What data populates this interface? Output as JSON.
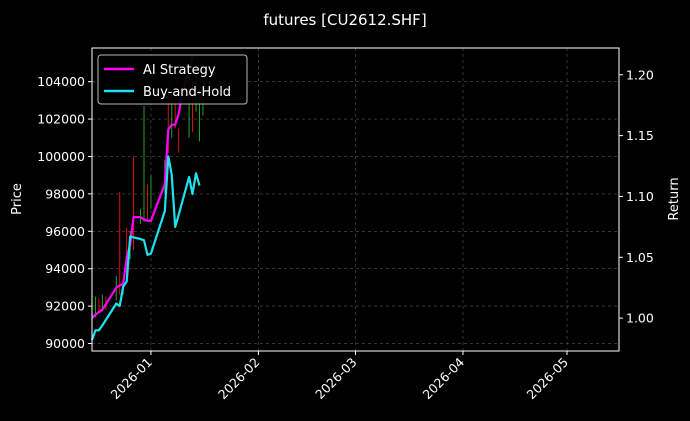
{
  "chart_data": {
    "type": "line",
    "title": "futures [CU2612.SHF]",
    "ylabel": "Price",
    "y2label": "Return",
    "ylim": [
      89600,
      105800
    ],
    "y2lim": [
      0.973,
      1.222
    ],
    "y_ticks": [
      "90000",
      "92000",
      "94000",
      "96000",
      "98000",
      "100000",
      "102000",
      "104000"
    ],
    "y2_ticks": [
      "1.00",
      "1.05",
      "1.10",
      "1.15",
      "1.20"
    ],
    "x_ticks": [
      "2026-01",
      "2026-02",
      "2026-03",
      "2026-04",
      "2026-05"
    ],
    "xlim": [
      "2025-12-15",
      "2026-05-16"
    ],
    "grid": true,
    "legend_position": "top-left",
    "colors": {
      "background": "#000000",
      "axis": "#ffffff",
      "grid": "#555555",
      "candle_up": "#1fa51f",
      "candle_down": "#e01010"
    },
    "candles": [
      {
        "x": "2025-12-15",
        "low": 91000,
        "high": 92100,
        "up": false
      },
      {
        "x": "2025-12-16",
        "low": 91400,
        "high": 92500,
        "up": true
      },
      {
        "x": "2025-12-17",
        "low": 91600,
        "high": 92400,
        "up": false
      },
      {
        "x": "2025-12-18",
        "low": 91700,
        "high": 92600,
        "up": true
      },
      {
        "x": "2025-12-19",
        "low": 91800,
        "high": 92500,
        "up": false
      },
      {
        "x": "2025-12-22",
        "low": 92300,
        "high": 93600,
        "up": true
      },
      {
        "x": "2025-12-23",
        "low": 92600,
        "high": 98100,
        "up": false
      },
      {
        "x": "2025-12-24",
        "low": 92600,
        "high": 93500,
        "up": true
      },
      {
        "x": "2025-12-25",
        "low": 93500,
        "high": 96200,
        "up": false
      },
      {
        "x": "2025-12-26",
        "low": 94500,
        "high": 96000,
        "up": true
      },
      {
        "x": "2025-12-27",
        "low": 95000,
        "high": 100000,
        "up": false
      },
      {
        "x": "2025-12-29",
        "low": 96400,
        "high": 97200,
        "up": true
      },
      {
        "x": "2025-12-30",
        "low": 96500,
        "high": 102700,
        "up": true
      },
      {
        "x": "2025-12-31",
        "low": 96600,
        "high": 98500,
        "up": false
      },
      {
        "x": "2026-01-01",
        "low": 97200,
        "high": 99000,
        "up": true
      },
      {
        "x": "2026-01-05",
        "low": 98000,
        "high": 99800,
        "up": true
      },
      {
        "x": "2026-01-06",
        "low": 100200,
        "high": 104000,
        "up": false
      },
      {
        "x": "2026-01-07",
        "low": 101000,
        "high": 103500,
        "up": true
      },
      {
        "x": "2026-01-08",
        "low": 101500,
        "high": 103000,
        "up": false
      },
      {
        "x": "2026-01-09",
        "low": 100200,
        "high": 101500,
        "up": false
      },
      {
        "x": "2026-01-12",
        "low": 101000,
        "high": 104400,
        "up": true
      },
      {
        "x": "2026-01-13",
        "low": 101300,
        "high": 104200,
        "up": false
      },
      {
        "x": "2026-01-14",
        "low": 102400,
        "high": 104700,
        "up": true
      },
      {
        "x": "2026-01-15",
        "low": 100800,
        "high": 103600,
        "up": true
      },
      {
        "x": "2026-01-16",
        "low": 102200,
        "high": 103200,
        "up": true
      }
    ],
    "series": [
      {
        "name": "AI Strategy",
        "axis": "right",
        "color": "#ff00ff",
        "points": [
          [
            "2025-12-15",
            1.0
          ],
          [
            "2025-12-16",
            1.003
          ],
          [
            "2025-12-18",
            1.007
          ],
          [
            "2025-12-22",
            1.025
          ],
          [
            "2025-12-23",
            1.027
          ],
          [
            "2025-12-24",
            1.028
          ],
          [
            "2025-12-25",
            1.05
          ],
          [
            "2025-12-26",
            1.06
          ],
          [
            "2025-12-27",
            1.083
          ],
          [
            "2025-12-29",
            1.083
          ],
          [
            "2025-12-30",
            1.081
          ],
          [
            "2025-12-31",
            1.08
          ],
          [
            "2026-01-01",
            1.08
          ],
          [
            "2026-01-05",
            1.11
          ],
          [
            "2026-01-06",
            1.155
          ],
          [
            "2026-01-07",
            1.159
          ],
          [
            "2026-01-08",
            1.159
          ],
          [
            "2026-01-09",
            1.168
          ],
          [
            "2026-01-10",
            1.183
          ],
          [
            "2026-01-12",
            1.205
          ],
          [
            "2026-01-13",
            1.215
          ]
        ]
      },
      {
        "name": "Buy-and-Hold",
        "axis": "right",
        "color": "#1de3f0",
        "points": [
          [
            "2025-12-15",
            0.982
          ],
          [
            "2025-12-16",
            0.99
          ],
          [
            "2025-12-17",
            0.99
          ],
          [
            "2025-12-18",
            0.994
          ],
          [
            "2025-12-22",
            1.012
          ],
          [
            "2025-12-23",
            1.01
          ],
          [
            "2025-12-24",
            1.026
          ],
          [
            "2025-12-25",
            1.03
          ],
          [
            "2025-12-26",
            1.067
          ],
          [
            "2025-12-29",
            1.065
          ],
          [
            "2025-12-30",
            1.064
          ],
          [
            "2025-12-31",
            1.052
          ],
          [
            "2026-01-01",
            1.053
          ],
          [
            "2026-01-05",
            1.088
          ],
          [
            "2026-01-06",
            1.133
          ],
          [
            "2026-01-07",
            1.118
          ],
          [
            "2026-01-08",
            1.075
          ],
          [
            "2026-01-09",
            1.085
          ],
          [
            "2026-01-12",
            1.116
          ],
          [
            "2026-01-13",
            1.102
          ],
          [
            "2026-01-14",
            1.119
          ],
          [
            "2026-01-15",
            1.109
          ]
        ]
      }
    ]
  }
}
